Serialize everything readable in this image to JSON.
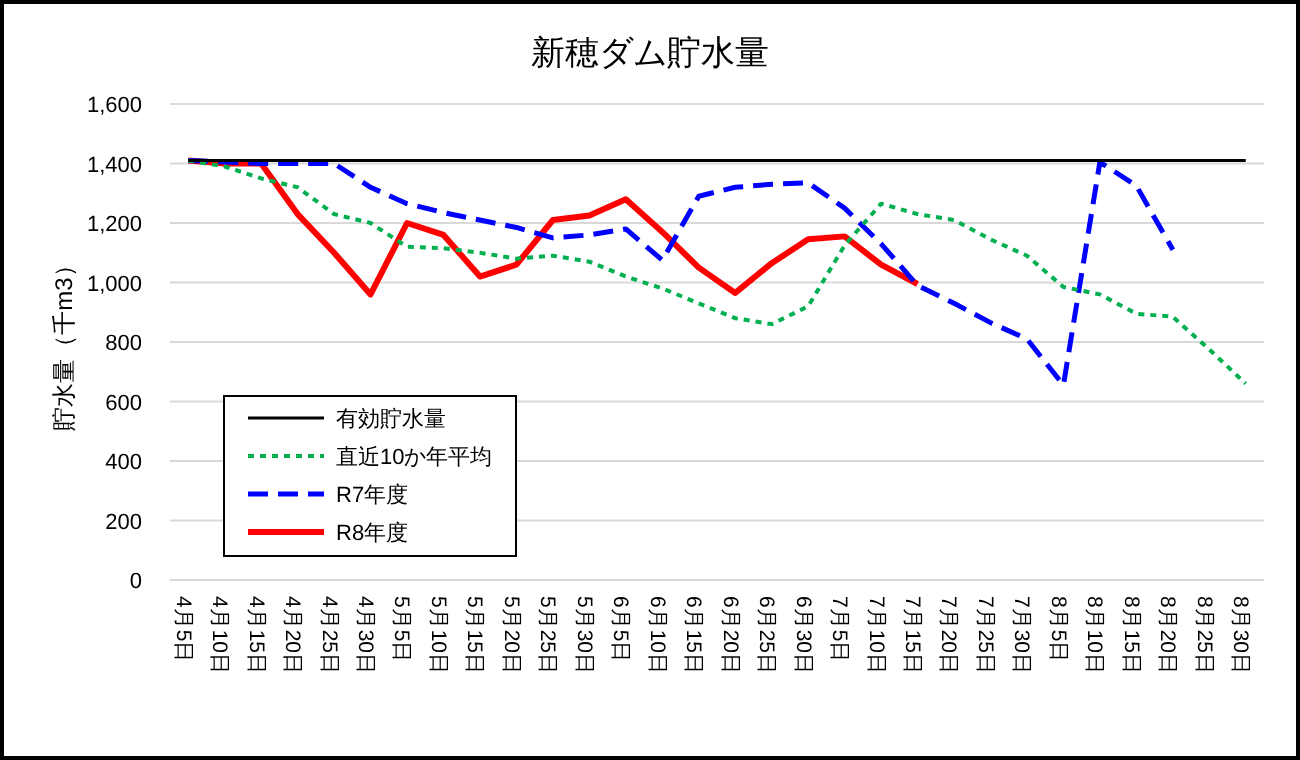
{
  "chart_data": {
    "type": "line",
    "title": "新穂ダム貯水量",
    "ylabel": "貯水量（千m3）",
    "categories": [
      "4月5日",
      "4月10日",
      "4月15日",
      "4月20日",
      "4月25日",
      "4月30日",
      "5月5日",
      "5月10日",
      "5月15日",
      "5月20日",
      "5月25日",
      "5月30日",
      "6月5日",
      "6月10日",
      "6月15日",
      "6月20日",
      "6月25日",
      "6月30日",
      "7月5日",
      "7月10日",
      "7月15日",
      "7月20日",
      "7月25日",
      "7月30日",
      "8月5日",
      "8月10日",
      "8月15日",
      "8月20日",
      "8月25日",
      "8月30日"
    ],
    "series": [
      {
        "name": "有効貯水量",
        "color": "#000000",
        "line_style": "solid",
        "values": [
          1410,
          1410,
          1410,
          1410,
          1410,
          1410,
          1410,
          1410,
          1410,
          1410,
          1410,
          1410,
          1410,
          1410,
          1410,
          1410,
          1410,
          1410,
          1410,
          1410,
          1410,
          1410,
          1410,
          1410,
          1410,
          1410,
          1410,
          1410,
          1410,
          1410
        ]
      },
      {
        "name": "直近10か年平均",
        "color": "#00b050",
        "line_style": "dotted",
        "values": [
          1410,
          1390,
          1350,
          1320,
          1230,
          1200,
          1120,
          1115,
          1100,
          1080,
          1090,
          1070,
          1020,
          980,
          930,
          880,
          860,
          920,
          1125,
          1265,
          1230,
          1210,
          1145,
          1090,
          985,
          960,
          895,
          885,
          775,
          660
        ]
      },
      {
        "name": "R7年度",
        "color": "#0000ff",
        "line_style": "dashed",
        "values": [
          1410,
          1405,
          1400,
          1400,
          1400,
          1320,
          1265,
          1235,
          1210,
          1185,
          1150,
          1160,
          1180,
          1075,
          1290,
          1320,
          1330,
          1335,
          1250,
          1130,
          990,
          930,
          865,
          810,
          655,
          1405,
          1325,
          1110,
          null,
          null
        ]
      },
      {
        "name": "R8年度",
        "color": "#ff0000",
        "line_style": "solid",
        "values": [
          1410,
          1400,
          1400,
          1230,
          1100,
          960,
          1200,
          1160,
          1020,
          1060,
          1210,
          1225,
          1280,
          1170,
          1050,
          965,
          1065,
          1145,
          1155,
          1060,
          995,
          null,
          null,
          null,
          null,
          null,
          null,
          null,
          null,
          null
        ]
      }
    ],
    "ylim": [
      0,
      1600
    ],
    "yticks": [
      {
        "value": 0,
        "label": "0"
      },
      {
        "value": 200,
        "label": "200"
      },
      {
        "value": 400,
        "label": "400"
      },
      {
        "value": 600,
        "label": "600"
      },
      {
        "value": 800,
        "label": "800"
      },
      {
        "value": 1000,
        "label": "1,000"
      },
      {
        "value": 1200,
        "label": "1,200"
      },
      {
        "value": 1400,
        "label": "1,400"
      },
      {
        "value": 1600,
        "label": "1,600"
      }
    ],
    "grid": "y",
    "legend": "bottom left"
  }
}
